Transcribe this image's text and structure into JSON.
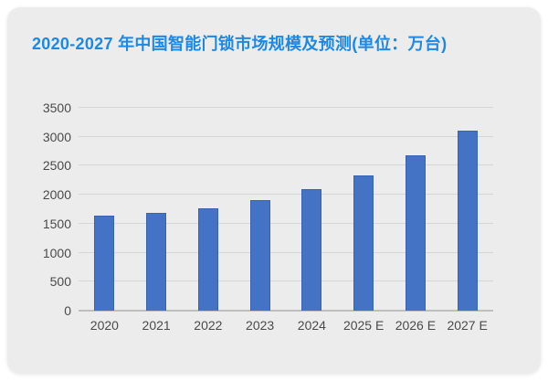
{
  "page": {
    "background": "#ffffff",
    "card_background": "#ececec"
  },
  "header": {
    "title": "2020-2027 年中国智能门锁市场规模及预测(单位：万台)",
    "title_color": "#1e88e5"
  },
  "chart_data": {
    "type": "bar",
    "title": "2020-2027 年中国智能门锁市场规模及预测(单位：万台)",
    "unit": "万台",
    "categories": [
      "2020",
      "2021",
      "2022",
      "2023",
      "2024",
      "2025 E",
      "2026 E",
      "2027 E"
    ],
    "values": [
      1640,
      1695,
      1760,
      1905,
      2090,
      2340,
      2680,
      3100
    ],
    "xlabel": "",
    "ylabel": "",
    "ylim": [
      0,
      3500
    ],
    "yticks": [
      0,
      500,
      1000,
      1500,
      2000,
      2500,
      3000,
      3500
    ],
    "grid": true,
    "legend_position": "none",
    "bar_color": "#4472c4",
    "bar_border_color": "#2e5496",
    "gridline_color": "#d6d6d6",
    "axis_line_color": "#bfbfbf",
    "tick_label_color": "#4a4a4a"
  }
}
